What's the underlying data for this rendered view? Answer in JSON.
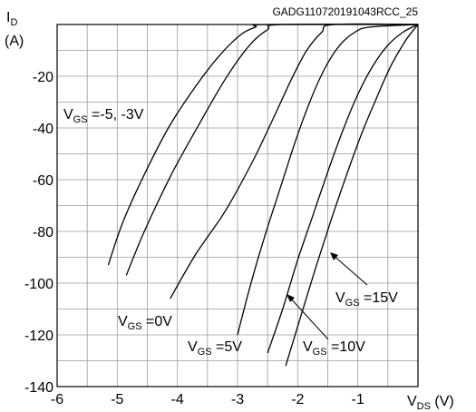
{
  "chart_data": {
    "type": "line",
    "figure_code": "GADG110720191043RCC_25",
    "y_axis": {
      "symbol": "I",
      "subscript": "D",
      "unit": "(A)",
      "lim": [
        -140,
        0
      ],
      "ticks": [
        -20,
        -40,
        -60,
        -80,
        -100,
        -120,
        -140
      ]
    },
    "x_axis": {
      "symbol": "V",
      "subscript": "DS",
      "unit": "(V)",
      "lim": [
        -6,
        0
      ],
      "ticks": [
        -6,
        -5,
        -4,
        -3,
        -2,
        -1
      ]
    },
    "grid": true,
    "series": [
      {
        "name": "VGS=-5V",
        "x": [
          -5.15,
          -4.9,
          -4.55,
          -4.15,
          -3.7,
          -3.3,
          -2.95,
          -2.7,
          -2.5,
          0
        ],
        "y": [
          -93,
          -76,
          -58,
          -40,
          -24,
          -12,
          -4,
          -1,
          0,
          0
        ]
      },
      {
        "name": "VGS=-3V",
        "x": [
          -4.85,
          -4.55,
          -4.1,
          -3.65,
          -3.2,
          -2.8,
          -2.5,
          -2.25,
          0
        ],
        "y": [
          -97,
          -80,
          -58,
          -39,
          -21,
          -8,
          -2,
          0,
          0
        ]
      },
      {
        "name": "VGS=0V",
        "x": [
          -4.12,
          -3.7,
          -3.2,
          -2.75,
          -2.4,
          -2.1,
          -1.85,
          -1.6,
          -1.4,
          0
        ],
        "y": [
          -106,
          -89,
          -72,
          -53,
          -36,
          -21,
          -10,
          -3,
          0,
          0
        ]
      },
      {
        "name": "VGS=5V",
        "x": [
          -3.0,
          -2.8,
          -2.55,
          -2.3,
          -2.05,
          -1.8,
          -1.55,
          -1.3,
          -1.05,
          -0.8,
          0
        ],
        "y": [
          -120,
          -102,
          -82,
          -64,
          -46,
          -30,
          -17,
          -8,
          -3,
          -1,
          0
        ]
      },
      {
        "name": "VGS=10V",
        "x": [
          -2.5,
          -2.25,
          -2.0,
          -1.75,
          -1.5,
          -1.25,
          -1.0,
          -0.75,
          -0.5,
          -0.25,
          0
        ],
        "y": [
          -127,
          -110,
          -91,
          -74,
          -57,
          -41,
          -27,
          -16,
          -8,
          -3,
          0
        ]
      },
      {
        "name": "VGS=15V",
        "x": [
          -2.2,
          -1.95,
          -1.7,
          -1.45,
          -1.2,
          -0.95,
          -0.7,
          -0.45,
          -0.2,
          0
        ],
        "y": [
          -132,
          -113,
          -94,
          -76,
          -59,
          -43,
          -29,
          -16,
          -6,
          0
        ]
      }
    ],
    "annotations": [
      {
        "main": "V",
        "sub": "GS",
        "rest": " =-5, -3V"
      },
      {
        "main": "V",
        "sub": "GS",
        "rest": " =0V"
      },
      {
        "main": "V",
        "sub": "GS",
        "rest": " =5V"
      },
      {
        "main": "V",
        "sub": "GS",
        "rest": " =10V"
      },
      {
        "main": "V",
        "sub": "GS",
        "rest": " =15V"
      }
    ]
  }
}
